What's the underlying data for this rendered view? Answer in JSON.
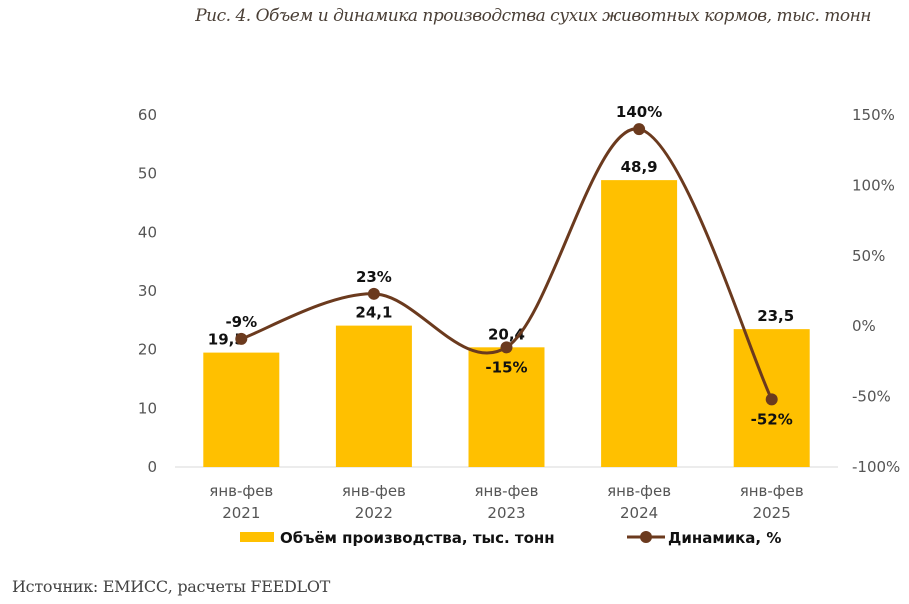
{
  "title": "Рис. 4. Объем и динамика производства сухих животных кормов, тыс. тонн",
  "source": "Источник: ЕМИСС, расчеты FEEDLOT",
  "chart_data": {
    "type": "bar+line",
    "categories": [
      [
        "янв-фев",
        "2021"
      ],
      [
        "янв-фев",
        "2022"
      ],
      [
        "янв-фев",
        "2023"
      ],
      [
        "янв-фев",
        "2024"
      ],
      [
        "янв-фев",
        "2025"
      ]
    ],
    "series": [
      {
        "name": "Объём производства, тыс. тонн",
        "type": "bar",
        "axis": "left",
        "color": "#FFC000",
        "values": [
          19.5,
          24.1,
          20.4,
          48.9,
          23.5
        ],
        "labels": [
          "19,5",
          "24,1",
          "20,4",
          "48,9",
          "23,5"
        ]
      },
      {
        "name": "Динамика, %",
        "type": "line",
        "axis": "right",
        "color": "#6B3A1E",
        "values": [
          -9,
          23,
          -15,
          140,
          -52
        ],
        "labels": [
          "-9%",
          "23%",
          "-15%",
          "140%",
          "-52%"
        ]
      }
    ],
    "left_axis": {
      "ylim": [
        0,
        60
      ],
      "ticks": [
        "0",
        "10",
        "20",
        "30",
        "40",
        "50",
        "60"
      ]
    },
    "right_axis": {
      "ylim": [
        -100,
        150
      ],
      "ticks": [
        "-100%",
        "-50%",
        "0%",
        "50%",
        "100%",
        "150%"
      ]
    },
    "legend": "bottom",
    "grid": false
  }
}
